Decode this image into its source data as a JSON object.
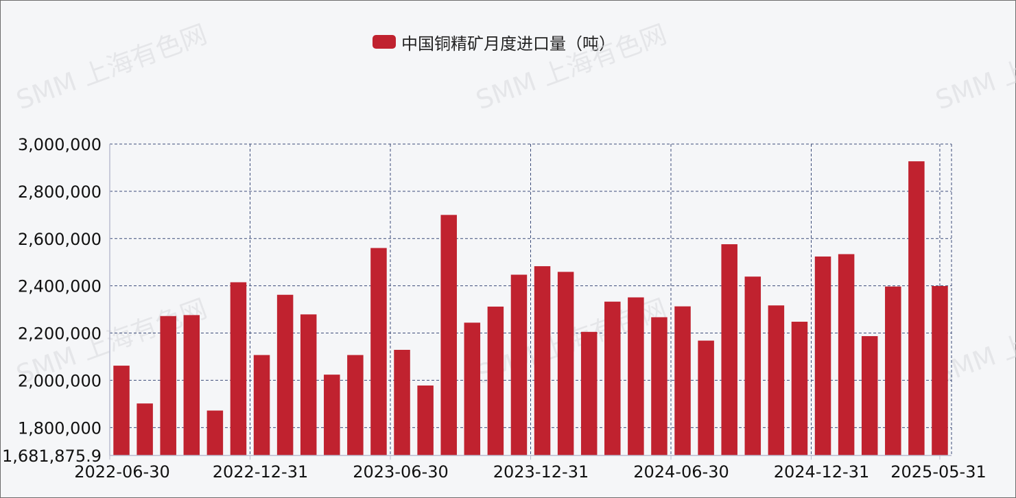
{
  "colors": {
    "bar": "#c0222f",
    "grid": "#3a4a78",
    "axis": "#b9bccf",
    "background": "#f5f6f8"
  },
  "watermark_text": "SMM 上海有色网",
  "legend": {
    "label": "中国铜精矿月度进口量（吨）"
  },
  "chart_data": {
    "type": "bar",
    "series": [
      {
        "name": "中国铜精矿月度进口量（吨）",
        "values": [
          2062000,
          1902000,
          2272000,
          2276000,
          1872000,
          2415000,
          2107000,
          2362000,
          2279000,
          2024000,
          2107000,
          2560000,
          2129000,
          1978000,
          2700000,
          2244000,
          2312000,
          2447000,
          2483000,
          2459000,
          2205000,
          2333000,
          2351000,
          2267000,
          2313000,
          2168000,
          2576000,
          2439000,
          2317000,
          2248000,
          2524000,
          2534000,
          2187000,
          2397000,
          2927000,
          2399000
        ]
      }
    ],
    "months_count": 36,
    "x_ticks": [
      {
        "label": "2022-06-30",
        "index": 0
      },
      {
        "label": "2022-12-31",
        "index": 6
      },
      {
        "label": "2023-06-30",
        "index": 12
      },
      {
        "label": "2023-12-31",
        "index": 18
      },
      {
        "label": "2024-06-30",
        "index": 24
      },
      {
        "label": "2024-12-31",
        "index": 30
      },
      {
        "label": "2025-05-31",
        "index": 35
      }
    ],
    "y_ticks": [
      {
        "label": "1,681,875.9",
        "value": 1681875.9
      },
      {
        "label": "1,800,000",
        "value": 1800000
      },
      {
        "label": "2,000,000",
        "value": 2000000
      },
      {
        "label": "2,200,000",
        "value": 2200000
      },
      {
        "label": "2,400,000",
        "value": 2400000
      },
      {
        "label": "2,600,000",
        "value": 2600000
      },
      {
        "label": "2,800,000",
        "value": 2800000
      },
      {
        "label": "3,000,000",
        "value": 3000000
      }
    ],
    "ylim": [
      1681875.9,
      3000000
    ],
    "grid": true,
    "legend_position": "top-center"
  }
}
